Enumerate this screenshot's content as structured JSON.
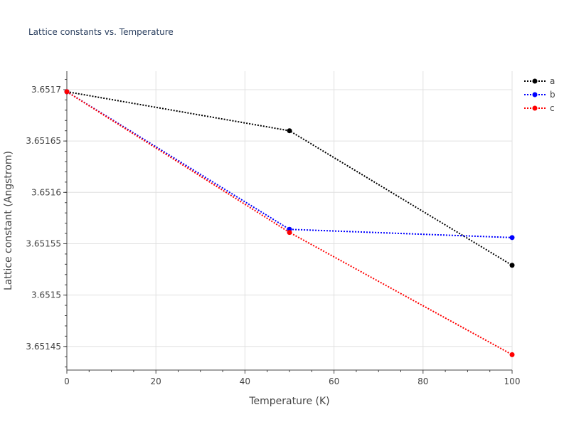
{
  "chart_data": {
    "type": "line",
    "title": "Lattice constants vs. Temperature",
    "xlabel": "Temperature (K)",
    "ylabel": "Lattice constant (Angstrom)",
    "xlim": [
      0,
      100
    ],
    "ylim": [
      3.651427,
      3.651718
    ],
    "x_ticks": [
      0,
      20,
      40,
      60,
      80,
      100
    ],
    "y_ticks": [
      3.65145,
      3.6515,
      3.65155,
      3.6516,
      3.65165,
      3.6517
    ],
    "y_tick_labels": [
      "3.65145",
      "3.6515",
      "3.65155",
      "3.6516",
      "3.65165",
      "3.6517"
    ],
    "grid": true,
    "legend_position": "top-right",
    "series": [
      {
        "name": "a",
        "color": "#000000",
        "x": [
          0,
          50,
          100
        ],
        "y": [
          3.651698,
          3.65166,
          3.651529
        ]
      },
      {
        "name": "b",
        "color": "#0000ff",
        "x": [
          0,
          50,
          100
        ],
        "y": [
          3.651698,
          3.651564,
          3.651556
        ]
      },
      {
        "name": "c",
        "color": "#ff0000",
        "x": [
          0,
          50,
          100
        ],
        "y": [
          3.651698,
          3.651561,
          3.651442
        ]
      }
    ]
  }
}
